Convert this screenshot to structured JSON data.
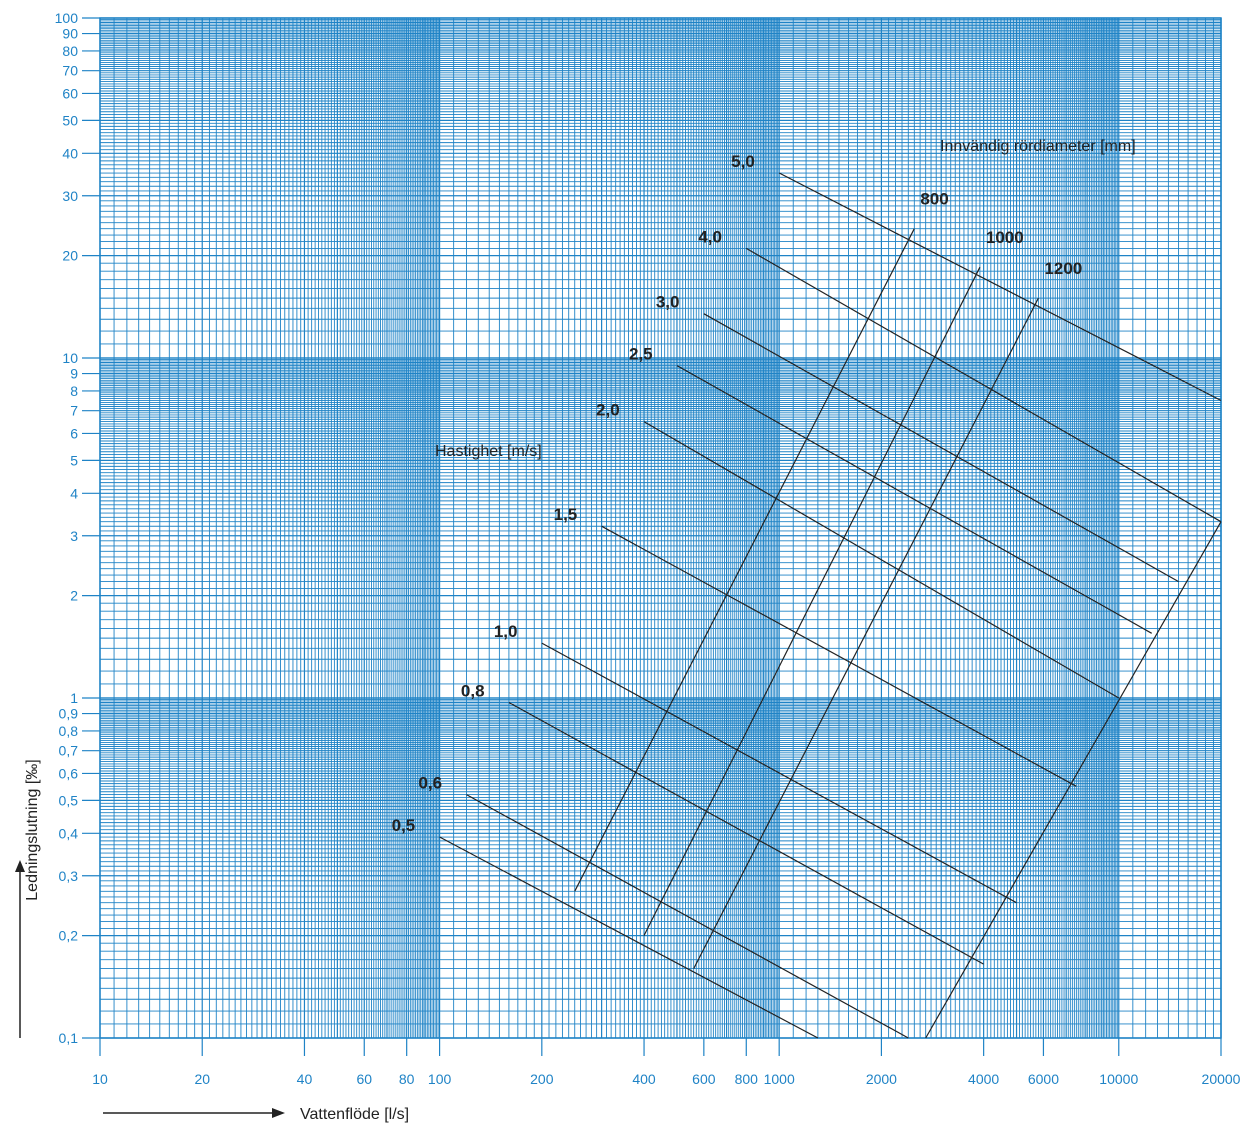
{
  "chart_data": {
    "type": "line",
    "xscale": "log",
    "yscale": "log",
    "xlim": [
      10,
      20000
    ],
    "ylim": [
      0.1,
      100
    ],
    "grid": true,
    "xlabel": "Vattenflöde [l/s]",
    "ylabel": "Ledningslutning [‰]",
    "xtick_labels": [
      "10",
      "20",
      "40",
      "60",
      "80",
      "100",
      "200",
      "400",
      "600",
      "800",
      "1000",
      "2000",
      "4000",
      "6000",
      "10000",
      "20000"
    ],
    "xtick_values": [
      10,
      20,
      40,
      60,
      80,
      100,
      200,
      400,
      600,
      800,
      1000,
      2000,
      4000,
      6000,
      10000,
      20000
    ],
    "ytick_labels": [
      "0,1",
      "0,2",
      "0,3",
      "0,4",
      "0,5",
      "0,6",
      "0,7",
      "0,8",
      "0,9",
      "1",
      "2",
      "3",
      "4",
      "5",
      "6",
      "7",
      "8",
      "9",
      "10",
      "20",
      "30",
      "40",
      "50",
      "60",
      "70",
      "80",
      "90",
      "100"
    ],
    "ytick_values": [
      0.1,
      0.2,
      0.3,
      0.4,
      0.5,
      0.6,
      0.7,
      0.8,
      0.9,
      1,
      2,
      3,
      4,
      5,
      6,
      7,
      8,
      9,
      10,
      20,
      30,
      40,
      50,
      60,
      70,
      80,
      90,
      100
    ],
    "velocity_title": "Hastighet [m/s]",
    "diameter_title": "Innvändig rördiameter [mm]",
    "velocity_lines": [
      {
        "name": "5,0",
        "x": [
          1000,
          20000
        ],
        "y": [
          35,
          7.5
        ]
      },
      {
        "name": "4,0",
        "x": [
          800,
          20000
        ],
        "y": [
          21,
          3.3
        ]
      },
      {
        "name": "3,0",
        "x": [
          600,
          15000
        ],
        "y": [
          13.5,
          2.2
        ]
      },
      {
        "name": "2,5",
        "x": [
          500,
          12500
        ],
        "y": [
          9.5,
          1.55
        ]
      },
      {
        "name": "2,0",
        "x": [
          400,
          10000
        ],
        "y": [
          6.5,
          1.0
        ]
      },
      {
        "name": "1,5",
        "x": [
          300,
          7500
        ],
        "y": [
          3.2,
          0.55
        ]
      },
      {
        "name": "1,0",
        "x": [
          200,
          5000
        ],
        "y": [
          1.45,
          0.25
        ]
      },
      {
        "name": "0,8",
        "x": [
          160,
          4000
        ],
        "y": [
          0.97,
          0.165
        ]
      },
      {
        "name": "0,6",
        "x": [
          120,
          2400
        ],
        "y": [
          0.52,
          0.1
        ]
      },
      {
        "name": "0,5",
        "x": [
          100,
          1300
        ],
        "y": [
          0.39,
          0.1
        ]
      }
    ],
    "diameter_lines": [
      {
        "name": "800",
        "x": [
          250,
          2500
        ],
        "y": [
          0.27,
          24
        ]
      },
      {
        "name": "1000",
        "x": [
          400,
          3900
        ],
        "y": [
          0.2,
          18.5
        ]
      },
      {
        "name": "1200",
        "x": [
          560,
          5800
        ],
        "y": [
          0.16,
          15
        ]
      },
      {
        "name": "",
        "x": [
          2700,
          20000
        ],
        "y": [
          0.1,
          3.3
        ]
      }
    ]
  }
}
